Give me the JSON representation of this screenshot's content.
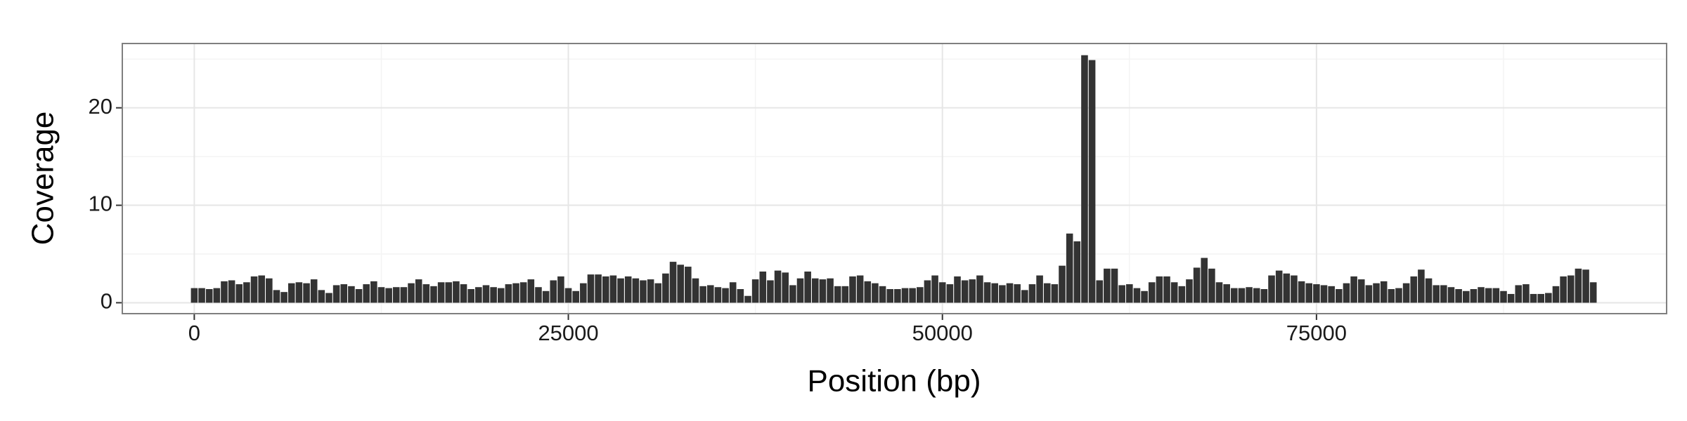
{
  "chart_data": {
    "type": "bar",
    "xlabel": "Position (bp)",
    "ylabel": "Coverage",
    "color": "#333333",
    "grid": true,
    "xlim": [
      -4810,
      98400
    ],
    "ylim": [
      -1.12,
      26.6
    ],
    "xticks": [
      0,
      25000,
      50000,
      75000
    ],
    "yticks": [
      0,
      10,
      20
    ],
    "x_minor_ticks": [
      12500,
      37500,
      62500,
      87500
    ],
    "y_minor_ticks": [
      5,
      15,
      25
    ],
    "x": [
      0,
      500,
      1000,
      1500,
      2000,
      2500,
      3000,
      3500,
      4000,
      4500,
      5000,
      5500,
      6000,
      6500,
      7000,
      7500,
      8000,
      8500,
      9000,
      9500,
      10000,
      10500,
      11000,
      11500,
      12000,
      12500,
      13000,
      13500,
      14000,
      14500,
      15000,
      15500,
      16000,
      16500,
      17000,
      17500,
      18000,
      18500,
      19000,
      19500,
      20000,
      20500,
      21000,
      21500,
      22000,
      22500,
      23000,
      23500,
      24000,
      24500,
      25000,
      25500,
      26000,
      26500,
      27000,
      27500,
      28000,
      28500,
      29000,
      29500,
      30000,
      30500,
      31000,
      31500,
      32000,
      32500,
      33000,
      33500,
      34000,
      34500,
      35000,
      35500,
      36000,
      36500,
      37000,
      37500,
      38000,
      38500,
      39000,
      39500,
      40000,
      40500,
      41000,
      41500,
      42000,
      42500,
      43000,
      43500,
      44000,
      44500,
      45000,
      45500,
      46000,
      46500,
      47000,
      47500,
      48000,
      48500,
      49000,
      49500,
      50000,
      50500,
      51000,
      51500,
      52000,
      52500,
      53000,
      53500,
      54000,
      54500,
      55000,
      55500,
      56000,
      56500,
      57000,
      57500,
      58000,
      58500,
      59000,
      59500,
      60000,
      60500,
      61000,
      61500,
      62000,
      62500,
      63000,
      63500,
      64000,
      64500,
      65000,
      65500,
      66000,
      66500,
      67000,
      67500,
      68000,
      68500,
      69000,
      69500,
      70000,
      70500,
      71000,
      71500,
      72000,
      72500,
      73000,
      73500,
      74000,
      74500,
      75000,
      75500,
      76000,
      76500,
      77000,
      77500,
      78000,
      78500,
      79000,
      79500,
      80000,
      80500,
      81000,
      81500,
      82000,
      82500,
      83000,
      83500,
      84000,
      84500,
      85000,
      85500,
      86000,
      86500,
      87000,
      87500,
      88000,
      88500,
      89000,
      89500,
      90000,
      90500,
      91000,
      91500,
      92000,
      92500,
      93000,
      93500
    ],
    "values": [
      1.5,
      1.5,
      1.4,
      1.5,
      2.2,
      2.3,
      1.9,
      2.1,
      2.7,
      2.8,
      2.5,
      1.3,
      1.1,
      2.0,
      2.1,
      2.0,
      2.4,
      1.3,
      1.0,
      1.8,
      1.9,
      1.7,
      1.4,
      1.9,
      2.2,
      1.6,
      1.5,
      1.6,
      1.6,
      2.0,
      2.4,
      1.9,
      1.7,
      2.1,
      2.1,
      2.2,
      1.9,
      1.4,
      1.6,
      1.8,
      1.6,
      1.5,
      1.9,
      2.0,
      2.1,
      2.4,
      1.6,
      1.2,
      2.3,
      2.7,
      1.5,
      1.2,
      2.0,
      2.9,
      2.9,
      2.7,
      2.8,
      2.5,
      2.7,
      2.5,
      2.3,
      2.4,
      2.0,
      3.0,
      4.2,
      3.9,
      3.7,
      2.5,
      1.7,
      1.8,
      1.6,
      1.5,
      2.1,
      1.4,
      0.7,
      2.4,
      3.2,
      2.3,
      3.3,
      3.1,
      1.8,
      2.5,
      3.2,
      2.5,
      2.4,
      2.5,
      1.7,
      1.7,
      2.7,
      2.8,
      2.2,
      2.0,
      1.7,
      1.4,
      1.4,
      1.5,
      1.5,
      1.6,
      2.3,
      2.8,
      2.1,
      1.9,
      2.7,
      2.3,
      2.4,
      2.8,
      2.1,
      2.0,
      1.8,
      2.0,
      1.9,
      1.3,
      1.9,
      2.8,
      2.0,
      1.9,
      3.8,
      7.1,
      6.3,
      25.4,
      24.9,
      2.3,
      3.5,
      3.5,
      1.8,
      1.9,
      1.5,
      1.2,
      2.1,
      2.7,
      2.7,
      2.1,
      1.7,
      2.4,
      3.6,
      4.6,
      3.5,
      2.1,
      1.9,
      1.5,
      1.5,
      1.6,
      1.5,
      1.4,
      2.8,
      3.3,
      3.0,
      2.8,
      2.2,
      2.0,
      1.9,
      1.8,
      1.7,
      1.4,
      2.0,
      2.7,
      2.4,
      1.8,
      2.0,
      2.2,
      1.4,
      1.5,
      2.0,
      2.7,
      3.4,
      2.5,
      1.8,
      1.8,
      1.6,
      1.4,
      1.2,
      1.4,
      1.6,
      1.5,
      1.5,
      1.2,
      0.9,
      1.8,
      1.9,
      0.9,
      0.9,
      1.0,
      1.7,
      2.7,
      2.8,
      3.5,
      3.4,
      2.1
    ]
  }
}
